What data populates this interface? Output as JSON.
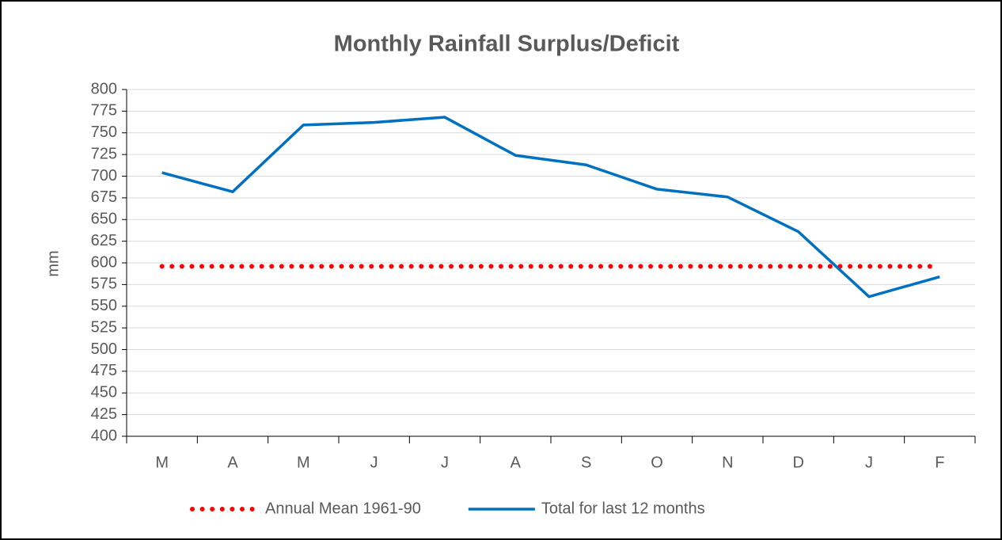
{
  "chart_data": {
    "type": "line",
    "title": "Monthly Rainfall Surplus/Deficit",
    "y_label": "mm",
    "categories": [
      "M",
      "A",
      "M",
      "J",
      "J",
      "A",
      "S",
      "O",
      "N",
      "D",
      "J",
      "F"
    ],
    "series": [
      {
        "name": "Annual Mean 1961-90",
        "color": "#ff0000",
        "style": "dotted",
        "values": [
          596,
          596,
          596,
          596,
          596,
          596,
          596,
          596,
          596,
          596,
          596,
          596
        ]
      },
      {
        "name": "Total for last 12 months",
        "color": "#0070c0",
        "style": "solid",
        "values": [
          704,
          682,
          759,
          762,
          768,
          724,
          713,
          685,
          676,
          636,
          561,
          584
        ]
      }
    ],
    "ylim": [
      400,
      800
    ],
    "yticks": [
      400,
      425,
      450,
      475,
      500,
      525,
      550,
      575,
      600,
      625,
      650,
      675,
      700,
      725,
      750,
      775,
      800
    ],
    "grid": true,
    "legend": "bottom"
  }
}
